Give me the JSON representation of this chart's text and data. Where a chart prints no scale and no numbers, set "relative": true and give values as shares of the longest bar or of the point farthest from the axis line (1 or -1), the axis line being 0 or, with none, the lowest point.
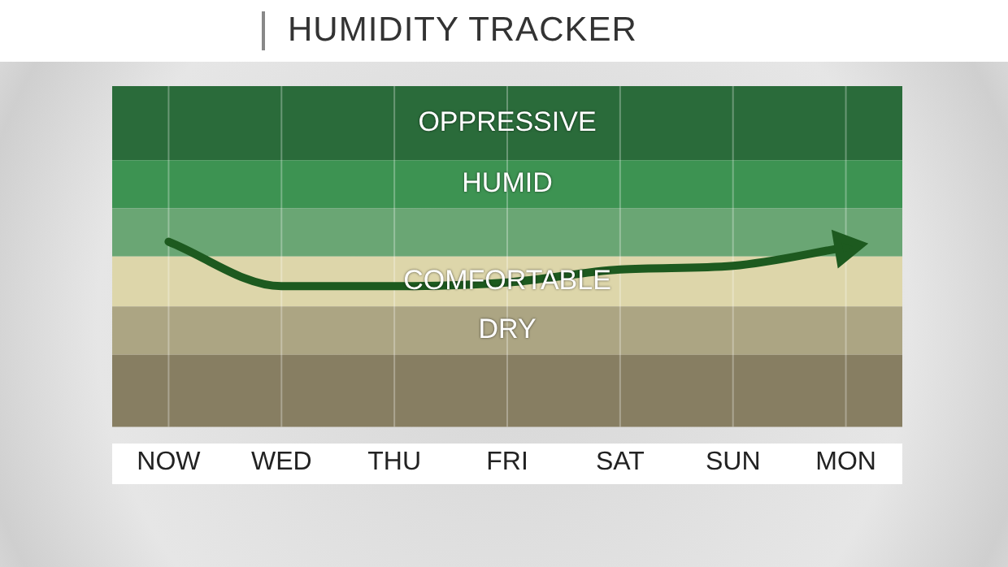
{
  "chart_data": {
    "type": "line",
    "title": "HUMIDITY TRACKER",
    "relative": true,
    "categories": [
      "NOW",
      "WED",
      "THU",
      "FRI",
      "SAT",
      "SUN",
      "MON"
    ],
    "series": [
      {
        "color": "#1d5a1f",
        "values": [
          1,
          0.76,
          0.76,
          0.78,
          0.85,
          0.87,
          0.97
        ]
      }
    ],
    "bands": [
      {
        "axis": "y",
        "from": 1.44,
        "to": 1.84,
        "label": "OPPRESSIVE",
        "color": "#2a6b3a"
      },
      {
        "axis": "y",
        "from": 1.18,
        "to": 1.44,
        "label": "HUMID",
        "color": "#3d9352"
      },
      {
        "axis": "y",
        "from": 0.92,
        "to": 1.18,
        "color": "#6aa674"
      },
      {
        "axis": "y",
        "from": 0.65,
        "to": 0.92,
        "label": "COMFORTABLE",
        "color": "#ddd6aa"
      },
      {
        "axis": "y",
        "from": 0.39,
        "to": 0.65,
        "label": "DRY",
        "color": "#aca583"
      },
      {
        "axis": "y",
        "from": 0,
        "to": 0.39,
        "color": "#877e62"
      }
    ],
    "grid": "x",
    "marker": "none",
    "line_style": "solid",
    "legend": false
  }
}
